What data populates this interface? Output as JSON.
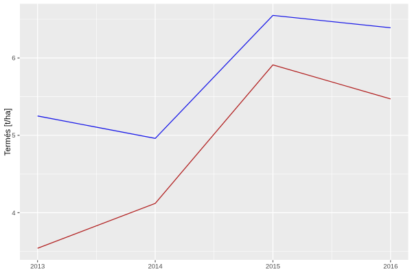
{
  "figure": {
    "background_color": "#FFFFFF",
    "panel_background_color": "#EBEBEB",
    "gridline_color": "#FFFFFF",
    "tick_mark_color": "#333333",
    "tick_label_color": "#4D4D4D",
    "axis_title_color": "#000000"
  },
  "chart_data": {
    "type": "line",
    "title": "",
    "xlabel": "",
    "ylabel": "Termés [t/ha]",
    "x": [
      2013,
      2014,
      2015,
      2016
    ],
    "x_tick_labels": [
      "2013",
      "2014",
      "2015",
      "2016"
    ],
    "y_ticks": [
      4,
      5,
      6
    ],
    "y_tick_labels": [
      "4",
      "5",
      "6"
    ],
    "x_minor_ticks": [
      2013.5,
      2014.5,
      2015.5
    ],
    "y_minor_ticks": [
      3.5,
      4.5,
      5.5,
      6.5
    ],
    "xlim": [
      2012.85,
      2016.15
    ],
    "ylim": [
      3.39,
      6.7
    ],
    "grid": "on",
    "legend_position": "none",
    "series": [
      {
        "name": "blue-line",
        "color": "#1A1AE8",
        "values": [
          5.25,
          4.96,
          6.55,
          6.39
        ]
      },
      {
        "name": "red-line",
        "color": "#B22222",
        "values": [
          3.54,
          4.12,
          5.91,
          5.47
        ]
      }
    ]
  }
}
